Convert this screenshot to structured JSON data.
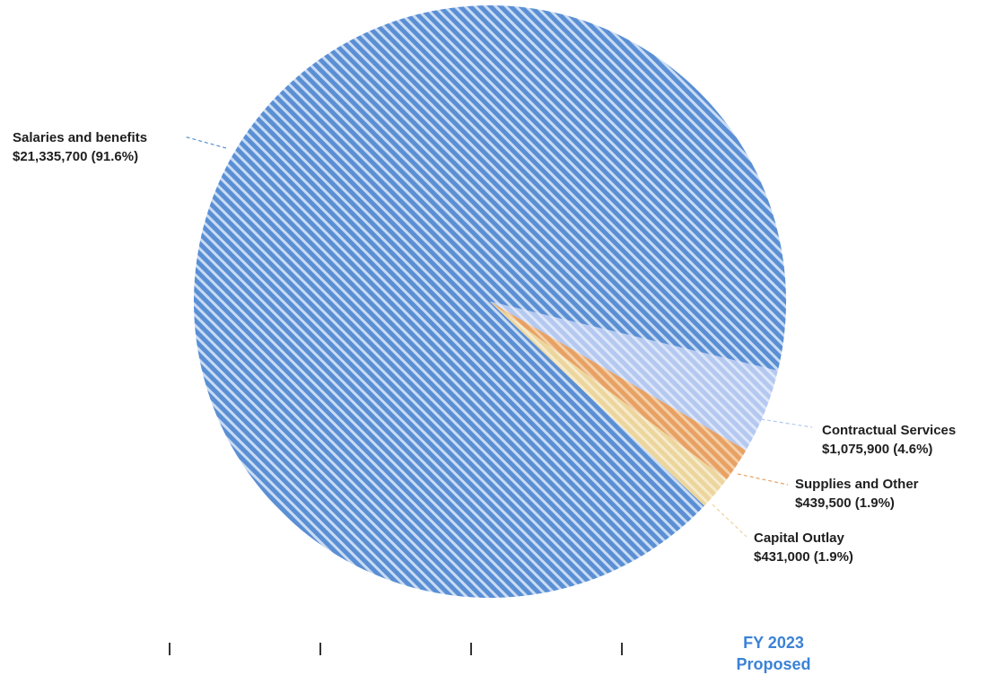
{
  "chart_data": {
    "type": "pie",
    "title": "",
    "category": [
      "FY 2023",
      "Proposed"
    ],
    "slices": [
      {
        "name": "Salaries and benefits",
        "value_label": "$21,335,700 (91.6%)",
        "value": 21335700,
        "percent": 91.6,
        "color": "#5b8fd4",
        "stripe": "#c9dcf4"
      },
      {
        "name": "Contractual Services",
        "value_label": "$1,075,900 (4.6%)",
        "value": 1075900,
        "percent": 4.6,
        "color": "#b4c8f0",
        "stripe": "#dde7fa"
      },
      {
        "name": "Supplies and Other",
        "value_label": "$439,500 (1.9%)",
        "value": 439500,
        "percent": 1.9,
        "color": "#e8a164",
        "stripe": "#f4cfa6"
      },
      {
        "name": "Capital Outlay",
        "value_label": "$431,000 (1.9%)",
        "value": 431000,
        "percent": 1.9,
        "color": "#ecd69e",
        "stripe": "#f6ebcc"
      }
    ]
  }
}
